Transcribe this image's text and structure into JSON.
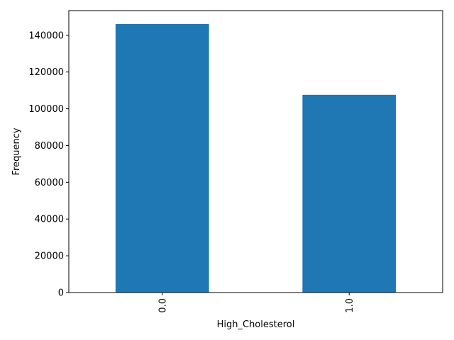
{
  "chart_data": {
    "type": "bar",
    "categories": [
      "0.0",
      "1.0"
    ],
    "values": [
      146089,
      107591
    ],
    "xlabel": "High_Cholesterol",
    "ylabel": "Frequency",
    "ylim": [
      0,
      153393
    ],
    "yticks": [
      0,
      20000,
      40000,
      60000,
      80000,
      100000,
      120000,
      140000
    ],
    "ytick_labels": [
      "0",
      "20000",
      "40000",
      "60000",
      "80000",
      "100000",
      "120000",
      "140000"
    ],
    "x_tick_rotation": 90,
    "grid": false,
    "legend": "none",
    "bar_color": "#1f77b4"
  }
}
